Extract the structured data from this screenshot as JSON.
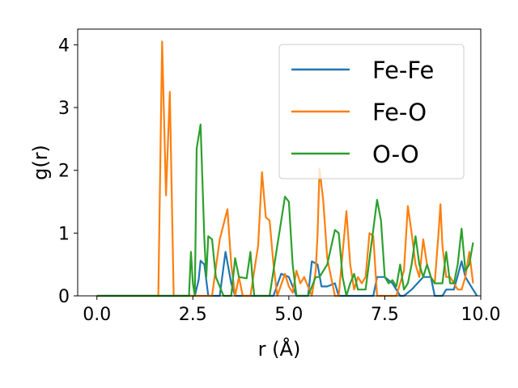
{
  "chart_data": {
    "type": "line",
    "xlabel": "r (Å)",
    "ylabel": "g(r)",
    "xlim": [
      -0.5,
      10.0
    ],
    "ylim": [
      0,
      4.25
    ],
    "xticks": [
      "0.0",
      "2.5",
      "5.0",
      "7.5",
      "10.0"
    ],
    "yticks": [
      "0",
      "1",
      "2",
      "3",
      "4"
    ],
    "legend": "top-right",
    "grid": false,
    "series": [
      {
        "name": "Fe-Fe",
        "color": "#1f77b4",
        "points": [
          [
            0,
            0
          ],
          [
            2.55,
            0
          ],
          [
            2.65,
            0.25
          ],
          [
            2.7,
            0.56
          ],
          [
            2.8,
            0.5
          ],
          [
            2.9,
            0
          ],
          [
            3.2,
            0
          ],
          [
            3.35,
            0.7
          ],
          [
            3.5,
            0.2
          ],
          [
            3.6,
            0
          ],
          [
            4.6,
            0
          ],
          [
            4.8,
            0.35
          ],
          [
            5.0,
            0.3
          ],
          [
            5.2,
            0
          ],
          [
            5.5,
            0
          ],
          [
            5.6,
            0.55
          ],
          [
            5.75,
            0.5
          ],
          [
            5.85,
            0.15
          ],
          [
            6.0,
            0.15
          ],
          [
            6.2,
            0.2
          ],
          [
            6.3,
            0
          ],
          [
            7.2,
            0
          ],
          [
            7.3,
            0.3
          ],
          [
            7.5,
            0.3
          ],
          [
            7.7,
            0.2
          ],
          [
            7.9,
            0
          ],
          [
            8.0,
            0
          ],
          [
            8.2,
            0.1
          ],
          [
            8.5,
            0.3
          ],
          [
            8.7,
            0.3
          ],
          [
            8.8,
            0
          ],
          [
            9.0,
            0
          ],
          [
            9.1,
            0.1
          ],
          [
            9.3,
            0.1
          ],
          [
            9.5,
            0.55
          ],
          [
            9.6,
            0.3
          ],
          [
            9.75,
            0.15
          ],
          [
            9.9,
            0
          ]
        ]
      },
      {
        "name": "Fe-O",
        "color": "#ff7f0e",
        "points": [
          [
            0,
            0
          ],
          [
            1.6,
            0
          ],
          [
            1.7,
            4.05
          ],
          [
            1.8,
            1.6
          ],
          [
            1.9,
            3.25
          ],
          [
            2.0,
            0
          ],
          [
            3.0,
            0
          ],
          [
            3.2,
            0.9
          ],
          [
            3.4,
            1.38
          ],
          [
            3.5,
            0.5
          ],
          [
            3.6,
            0
          ],
          [
            3.7,
            0.3
          ],
          [
            3.8,
            0
          ],
          [
            4.0,
            0
          ],
          [
            4.2,
            0.8
          ],
          [
            4.3,
            1.97
          ],
          [
            4.4,
            1.25
          ],
          [
            4.5,
            1.2
          ],
          [
            4.6,
            0.5
          ],
          [
            4.7,
            0
          ],
          [
            4.9,
            0.35
          ],
          [
            5.0,
            0.15
          ],
          [
            5.1,
            0.05
          ],
          [
            5.2,
            0.4
          ],
          [
            5.3,
            0.2
          ],
          [
            5.4,
            0.3
          ],
          [
            5.6,
            0
          ],
          [
            5.7,
            0.4
          ],
          [
            5.75,
            1.0
          ],
          [
            5.8,
            2.03
          ],
          [
            5.9,
            1.5
          ],
          [
            6.0,
            0.6
          ],
          [
            6.1,
            0.3
          ],
          [
            6.2,
            0
          ],
          [
            6.3,
            0
          ],
          [
            6.5,
            1.35
          ],
          [
            6.6,
            0.5
          ],
          [
            6.7,
            0.1
          ],
          [
            6.8,
            0.3
          ],
          [
            6.9,
            0.2
          ],
          [
            7.0,
            0.3
          ],
          [
            7.1,
            1.0
          ],
          [
            7.2,
            0.95
          ],
          [
            7.3,
            0
          ],
          [
            7.8,
            0
          ],
          [
            8.0,
            0.4
          ],
          [
            8.1,
            1.43
          ],
          [
            8.2,
            1.0
          ],
          [
            8.3,
            0.5
          ],
          [
            8.4,
            0.3
          ],
          [
            8.5,
            0.9
          ],
          [
            8.6,
            0.5
          ],
          [
            8.7,
            0.3
          ],
          [
            8.8,
            0.2
          ],
          [
            8.9,
            1.0
          ],
          [
            8.95,
            1.46
          ],
          [
            9.0,
            0.8
          ],
          [
            9.1,
            0.3
          ],
          [
            9.2,
            0.3
          ],
          [
            9.4,
            0.1
          ],
          [
            9.5,
            0.1
          ],
          [
            9.6,
            0.3
          ],
          [
            9.7,
            0.7
          ],
          [
            9.8,
            0.2
          ]
        ]
      },
      {
        "name": "O-O",
        "color": "#2ca02c",
        "points": [
          [
            0,
            0
          ],
          [
            2.4,
            0
          ],
          [
            2.45,
            0.7
          ],
          [
            2.5,
            0.2
          ],
          [
            2.55,
            0
          ],
          [
            2.6,
            2.35
          ],
          [
            2.7,
            2.73
          ],
          [
            2.8,
            0.9
          ],
          [
            2.85,
            0.3
          ],
          [
            2.9,
            0.95
          ],
          [
            3.0,
            0.9
          ],
          [
            3.1,
            0.3
          ],
          [
            3.3,
            0
          ],
          [
            3.5,
            0
          ],
          [
            3.6,
            0.6
          ],
          [
            3.7,
            0.3
          ],
          [
            3.9,
            0.28
          ],
          [
            4.0,
            0.7
          ],
          [
            4.05,
            0.3
          ],
          [
            4.1,
            0
          ],
          [
            4.5,
            0
          ],
          [
            4.7,
            0.8
          ],
          [
            4.9,
            1.58
          ],
          [
            5.0,
            1.5
          ],
          [
            5.1,
            0.5
          ],
          [
            5.2,
            0
          ],
          [
            5.5,
            0
          ],
          [
            5.7,
            0.3
          ],
          [
            5.8,
            0.3
          ],
          [
            6.0,
            0.5
          ],
          [
            6.2,
            1.05
          ],
          [
            6.3,
            1.0
          ],
          [
            6.4,
            0.3
          ],
          [
            6.5,
            0
          ],
          [
            6.6,
            0.2
          ],
          [
            6.7,
            0.35
          ],
          [
            6.8,
            0.1
          ],
          [
            7.0,
            0.1
          ],
          [
            7.3,
            1.53
          ],
          [
            7.4,
            1.2
          ],
          [
            7.5,
            0.3
          ],
          [
            7.6,
            0.2
          ],
          [
            7.7,
            0.25
          ],
          [
            7.8,
            0.15
          ],
          [
            7.9,
            0.5
          ],
          [
            8.0,
            0.1
          ],
          [
            8.1,
            0.2
          ],
          [
            8.2,
            0.5
          ],
          [
            8.3,
            0.95
          ],
          [
            8.4,
            0.5
          ],
          [
            8.5,
            0.3
          ],
          [
            8.6,
            0.5
          ],
          [
            8.7,
            0.3
          ],
          [
            8.8,
            0.2
          ],
          [
            9.0,
            0.2
          ],
          [
            9.1,
            0.7
          ],
          [
            9.2,
            0.2
          ],
          [
            9.3,
            0.2
          ],
          [
            9.4,
            0.5
          ],
          [
            9.5,
            1.07
          ],
          [
            9.6,
            0.4
          ],
          [
            9.7,
            0.5
          ],
          [
            9.8,
            0.85
          ]
        ]
      }
    ]
  }
}
